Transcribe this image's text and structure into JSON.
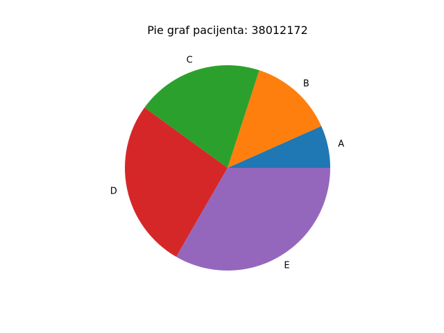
{
  "chart_data": {
    "type": "pie",
    "title": "Pie graf pacijenta: 38012172",
    "categories": [
      "A",
      "B",
      "C",
      "D",
      "E"
    ],
    "values": [
      1,
      2,
      3,
      4,
      5
    ],
    "colors": [
      "#1f77b4",
      "#ff7f0e",
      "#2ca02c",
      "#d62728",
      "#9467bd"
    ],
    "start_angle_deg": 0,
    "direction": "counterclockwise",
    "legend": "none"
  }
}
